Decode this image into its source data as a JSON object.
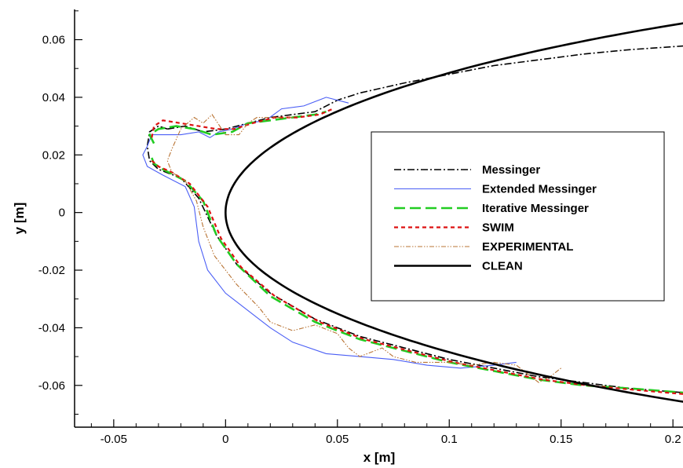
{
  "chart_data": {
    "type": "line",
    "xlabel": "x [m]",
    "ylabel": "y [m]",
    "xlim": [
      -0.0675,
      0.2045
    ],
    "ylim": [
      -0.0745,
      0.0705
    ],
    "x_ticks": [
      -0.05,
      0,
      0.05,
      0.1,
      0.15,
      0.2
    ],
    "x_tick_labels": [
      "-0.05",
      "0",
      "0.05",
      "0.1",
      "0.15",
      "0.2"
    ],
    "y_ticks": [
      0.06,
      0.04,
      0.02,
      0,
      -0.02,
      -0.04,
      -0.06
    ],
    "y_tick_labels": [
      "0.06",
      "0.04",
      "0.02",
      "0",
      "-0.02",
      "-0.04",
      "-0.06"
    ],
    "grid": false,
    "legend_position": "right",
    "series": [
      {
        "name": "Messinger",
        "color": "#000000",
        "dash": "dashdot",
        "points": [
          [
            -0.026,
            0.029
          ],
          [
            -0.03,
            0.03
          ],
          [
            -0.034,
            0.028
          ],
          [
            -0.035,
            0.023
          ],
          [
            -0.034,
            0.018
          ],
          [
            -0.03,
            0.015
          ],
          [
            -0.02,
            0.012
          ],
          [
            -0.012,
            0.005
          ],
          [
            -0.004,
            -0.008
          ],
          [
            0.005,
            -0.018
          ],
          [
            0.02,
            -0.028
          ],
          [
            0.04,
            -0.037
          ],
          [
            0.06,
            -0.043
          ],
          [
            0.08,
            -0.047
          ],
          [
            0.1,
            -0.051
          ],
          [
            0.12,
            -0.054
          ],
          [
            0.14,
            -0.057
          ],
          [
            0.16,
            -0.059
          ],
          [
            0.18,
            -0.061
          ],
          [
            0.2045,
            -0.0625
          ]
        ],
        "upper_points": [
          [
            -0.026,
            0.029
          ],
          [
            -0.018,
            0.03
          ],
          [
            -0.01,
            0.028
          ],
          [
            0,
            0.029
          ],
          [
            0.01,
            0.031
          ],
          [
            0.02,
            0.033
          ],
          [
            0.03,
            0.034
          ],
          [
            0.04,
            0.035
          ],
          [
            0.05,
            0.039
          ],
          [
            0.06,
            0.0415
          ],
          [
            0.08,
            0.045
          ],
          [
            0.1,
            0.048
          ],
          [
            0.12,
            0.051
          ],
          [
            0.14,
            0.053
          ],
          [
            0.16,
            0.055
          ],
          [
            0.18,
            0.0565
          ],
          [
            0.2045,
            0.0578
          ]
        ]
      },
      {
        "name": "Extended Messinger",
        "color": "#4a5ef5",
        "dash": "solid",
        "points": [
          [
            0.055,
            0.038
          ],
          [
            0.045,
            0.04
          ],
          [
            0.035,
            0.037
          ],
          [
            0.025,
            0.036
          ],
          [
            0.018,
            0.032
          ],
          [
            0.01,
            0.031
          ],
          [
            0.003,
            0.029
          ],
          [
            -0.003,
            0.028
          ],
          [
            -0.007,
            0.026
          ],
          [
            -0.012,
            0.028
          ],
          [
            -0.02,
            0.027
          ],
          [
            -0.026,
            0.027
          ],
          [
            -0.033,
            0.027
          ],
          [
            -0.035,
            0.023
          ],
          [
            -0.037,
            0.02
          ],
          [
            -0.035,
            0.016
          ],
          [
            -0.028,
            0.013
          ],
          [
            -0.018,
            0.009
          ],
          [
            -0.014,
            0.002
          ],
          [
            -0.012,
            -0.01
          ],
          [
            -0.008,
            -0.02
          ],
          [
            0,
            -0.028
          ],
          [
            0.01,
            -0.034
          ],
          [
            0.02,
            -0.04
          ],
          [
            0.03,
            -0.045
          ],
          [
            0.045,
            -0.049
          ],
          [
            0.06,
            -0.05
          ],
          [
            0.075,
            -0.051
          ],
          [
            0.09,
            -0.053
          ],
          [
            0.105,
            -0.054
          ],
          [
            0.12,
            -0.053
          ],
          [
            0.13,
            -0.052
          ]
        ]
      },
      {
        "name": "Iterative Messinger",
        "color": "#22cc22",
        "dash": "longdash",
        "points": [
          [
            -0.032,
            0.024
          ],
          [
            -0.034,
            0.027
          ],
          [
            -0.03,
            0.029
          ],
          [
            -0.022,
            0.03
          ],
          [
            -0.014,
            0.029
          ],
          [
            -0.006,
            0.027
          ],
          [
            0.003,
            0.028
          ],
          [
            0.01,
            0.031
          ],
          [
            0.02,
            0.032
          ],
          [
            0.03,
            0.033
          ],
          [
            0.04,
            0.034
          ],
          [
            0.045,
            0.035
          ]
        ],
        "lower_points": [
          [
            -0.033,
            0.019
          ],
          [
            -0.032,
            0.017
          ],
          [
            -0.028,
            0.015
          ],
          [
            -0.018,
            0.011
          ],
          [
            -0.01,
            0.004
          ],
          [
            -0.004,
            -0.008
          ],
          [
            0.005,
            -0.018
          ],
          [
            0.02,
            -0.029
          ],
          [
            0.04,
            -0.038
          ],
          [
            0.06,
            -0.044
          ],
          [
            0.08,
            -0.048
          ],
          [
            0.1,
            -0.052
          ],
          [
            0.12,
            -0.055
          ],
          [
            0.14,
            -0.058
          ],
          [
            0.16,
            -0.06
          ],
          [
            0.18,
            -0.061
          ],
          [
            0.2045,
            -0.0625
          ]
        ]
      },
      {
        "name": "SWIM",
        "color": "#dd1111",
        "dash": "dash",
        "points": [
          [
            -0.033,
            0.026
          ],
          [
            -0.032,
            0.03
          ],
          [
            -0.028,
            0.032
          ],
          [
            -0.02,
            0.031
          ],
          [
            -0.012,
            0.03
          ],
          [
            -0.004,
            0.029
          ],
          [
            0.004,
            0.029
          ],
          [
            0.012,
            0.031
          ],
          [
            0.022,
            0.033
          ],
          [
            0.032,
            0.033
          ],
          [
            0.042,
            0.034
          ],
          [
            0.048,
            0.036
          ]
        ],
        "lower_points": [
          [
            -0.033,
            0.018
          ],
          [
            -0.03,
            0.016
          ],
          [
            -0.024,
            0.014
          ],
          [
            -0.016,
            0.01
          ],
          [
            -0.008,
            0.002
          ],
          [
            -0.002,
            -0.009
          ],
          [
            0.007,
            -0.019
          ],
          [
            0.022,
            -0.029
          ],
          [
            0.042,
            -0.038
          ],
          [
            0.062,
            -0.044
          ],
          [
            0.082,
            -0.048
          ],
          [
            0.102,
            -0.052
          ],
          [
            0.122,
            -0.055
          ],
          [
            0.142,
            -0.058
          ],
          [
            0.162,
            -0.06
          ],
          [
            0.182,
            -0.0615
          ],
          [
            0.2045,
            -0.063
          ]
        ]
      },
      {
        "name": "EXPERIMENTAL",
        "color": "#b87333",
        "dash": "dashdotdot",
        "points": [
          [
            0.03,
            0.033
          ],
          [
            0.02,
            0.033
          ],
          [
            0.014,
            0.033
          ],
          [
            0.01,
            0.031
          ],
          [
            0.006,
            0.027
          ],
          [
            0,
            0.027
          ],
          [
            -0.006,
            0.034
          ],
          [
            -0.01,
            0.031
          ],
          [
            -0.014,
            0.033
          ],
          [
            -0.02,
            0.029
          ],
          [
            -0.024,
            0.022
          ],
          [
            -0.026,
            0.018
          ],
          [
            -0.024,
            0.014
          ],
          [
            -0.018,
            0.011
          ],
          [
            -0.013,
            0.004
          ],
          [
            -0.01,
            -0.005
          ],
          [
            -0.005,
            -0.015
          ],
          [
            0.005,
            -0.025
          ],
          [
            0.015,
            -0.033
          ],
          [
            0.02,
            -0.038
          ],
          [
            0.03,
            -0.041
          ],
          [
            0.04,
            -0.039
          ],
          [
            0.05,
            -0.042
          ],
          [
            0.055,
            -0.047
          ],
          [
            0.06,
            -0.05
          ],
          [
            0.07,
            -0.047
          ],
          [
            0.075,
            -0.05
          ],
          [
            0.085,
            -0.052
          ],
          [
            0.1,
            -0.052
          ],
          [
            0.11,
            -0.053
          ],
          [
            0.12,
            -0.052
          ],
          [
            0.13,
            -0.053
          ],
          [
            0.135,
            -0.056
          ],
          [
            0.14,
            -0.059
          ],
          [
            0.145,
            -0.057
          ],
          [
            0.15,
            -0.054
          ]
        ]
      },
      {
        "name": "CLEAN",
        "color": "#000000",
        "dash": "solid"
      }
    ]
  }
}
